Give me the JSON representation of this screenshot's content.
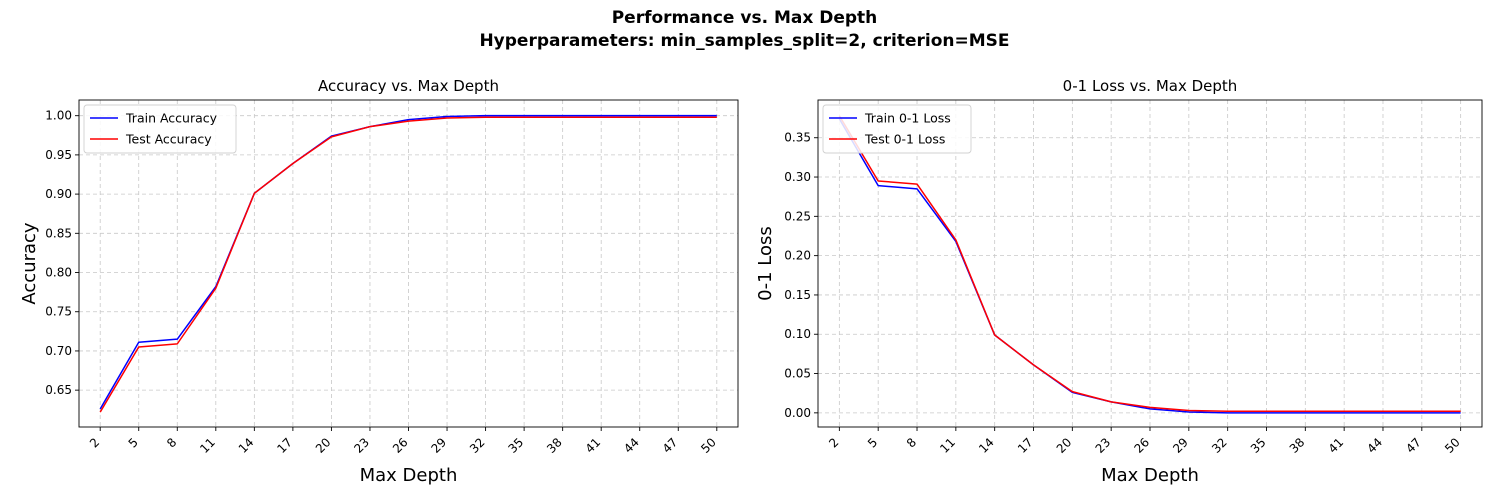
{
  "figure": {
    "suptitle_line1": "Performance vs. Max Depth",
    "suptitle_line2": "Hyperparameters: min_samples_split=2, criterion=MSE"
  },
  "colors": {
    "train": "#0000ff",
    "test": "#ff0000",
    "grid": "#c8c8c8"
  },
  "chart_data": [
    {
      "type": "line",
      "title": "Accuracy vs. Max Depth",
      "xlabel": "Max Depth",
      "ylabel": "Accuracy",
      "x": [
        2,
        5,
        8,
        11,
        14,
        17,
        20,
        23,
        26,
        29,
        32,
        35,
        38,
        41,
        44,
        47,
        50
      ],
      "xticks": [
        "2",
        "5",
        "8",
        "11",
        "14",
        "17",
        "20",
        "23",
        "26",
        "29",
        "32",
        "35",
        "38",
        "41",
        "44",
        "47",
        "50"
      ],
      "yticks": [
        "0.65",
        "0.70",
        "0.75",
        "0.80",
        "0.85",
        "0.90",
        "0.95",
        "1.00"
      ],
      "ylim": [
        0.603,
        1.02
      ],
      "grid": true,
      "legend_position": "upper left",
      "series": [
        {
          "name": "Train Accuracy",
          "color": "#0000ff",
          "values": [
            0.626,
            0.711,
            0.715,
            0.782,
            0.901,
            0.939,
            0.974,
            0.986,
            0.995,
            0.999,
            1.0,
            1.0,
            1.0,
            1.0,
            1.0,
            1.0,
            1.0
          ]
        },
        {
          "name": "Test Accuracy",
          "color": "#ff0000",
          "values": [
            0.622,
            0.705,
            0.709,
            0.78,
            0.901,
            0.939,
            0.973,
            0.986,
            0.993,
            0.997,
            0.998,
            0.998,
            0.998,
            0.998,
            0.998,
            0.998,
            0.998
          ]
        }
      ]
    },
    {
      "type": "line",
      "title": "0-1 Loss vs. Max Depth",
      "xlabel": "Max Depth",
      "ylabel": "0-1 Loss",
      "x": [
        2,
        5,
        8,
        11,
        14,
        17,
        20,
        23,
        26,
        29,
        32,
        35,
        38,
        41,
        44,
        47,
        50
      ],
      "xticks": [
        "2",
        "5",
        "8",
        "11",
        "14",
        "17",
        "20",
        "23",
        "26",
        "29",
        "32",
        "35",
        "38",
        "41",
        "44",
        "47",
        "50"
      ],
      "yticks": [
        "0.00",
        "0.05",
        "0.10",
        "0.15",
        "0.20",
        "0.25",
        "0.30",
        "0.35"
      ],
      "ylim": [
        -0.018,
        0.398
      ],
      "grid": true,
      "legend_position": "upper left",
      "series": [
        {
          "name": "Train 0-1 Loss",
          "color": "#0000ff",
          "values": [
            0.374,
            0.289,
            0.285,
            0.218,
            0.099,
            0.061,
            0.026,
            0.014,
            0.005,
            0.001,
            0.0,
            0.0,
            0.0,
            0.0,
            0.0,
            0.0,
            0.0
          ]
        },
        {
          "name": "Test 0-1 Loss",
          "color": "#ff0000",
          "values": [
            0.378,
            0.295,
            0.291,
            0.22,
            0.099,
            0.061,
            0.027,
            0.014,
            0.007,
            0.003,
            0.002,
            0.002,
            0.002,
            0.002,
            0.002,
            0.002,
            0.002
          ]
        }
      ]
    }
  ]
}
